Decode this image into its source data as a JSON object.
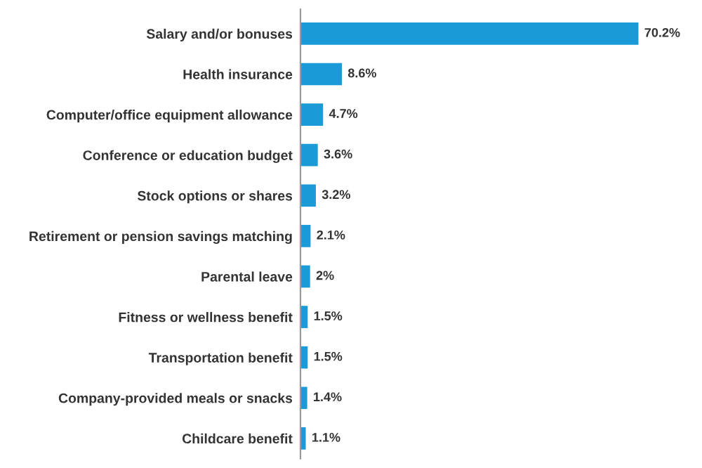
{
  "chart_data": {
    "type": "bar",
    "orientation": "horizontal",
    "categories": [
      "Salary and/or bonuses",
      "Health insurance",
      "Computer/office equipment allowance",
      "Conference or education budget",
      "Stock options or shares",
      "Retirement or pension savings matching",
      "Parental leave",
      "Fitness or wellness benefit",
      "Transportation benefit",
      "Company-provided meals or snacks",
      "Childcare benefit"
    ],
    "values": [
      70.2,
      8.6,
      4.7,
      3.6,
      3.2,
      2.1,
      2,
      1.5,
      1.5,
      1.4,
      1.1
    ],
    "value_labels": [
      "70.2%",
      "8.6%",
      "4.7%",
      "3.6%",
      "3.2%",
      "2.1%",
      "2%",
      "1.5%",
      "1.5%",
      "1.4%",
      "1.1%"
    ],
    "color": "#1a9bd7",
    "grid": false,
    "legend": false
  }
}
